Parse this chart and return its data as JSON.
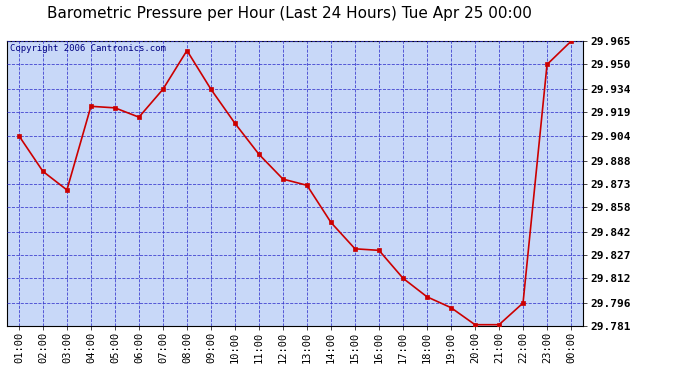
{
  "title": "Barometric Pressure per Hour (Last 24 Hours) Tue Apr 25 00:00",
  "copyright": "Copyright 2006 Cantronics.com",
  "x_labels": [
    "01:00",
    "02:00",
    "03:00",
    "04:00",
    "05:00",
    "06:00",
    "07:00",
    "08:00",
    "09:00",
    "10:00",
    "11:00",
    "12:00",
    "13:00",
    "14:00",
    "15:00",
    "16:00",
    "17:00",
    "18:00",
    "19:00",
    "20:00",
    "21:00",
    "22:00",
    "23:00",
    "00:00"
  ],
  "x_values": [
    1,
    2,
    3,
    4,
    5,
    6,
    7,
    8,
    9,
    10,
    11,
    12,
    13,
    14,
    15,
    16,
    17,
    18,
    19,
    20,
    21,
    22,
    23,
    24
  ],
  "y_values": [
    29.904,
    29.881,
    29.869,
    29.923,
    29.922,
    29.916,
    29.934,
    29.959,
    29.934,
    29.912,
    29.892,
    29.876,
    29.872,
    29.848,
    29.831,
    29.83,
    29.812,
    29.8,
    29.793,
    29.782,
    29.782,
    29.796,
    29.95,
    29.965
  ],
  "y_min": 29.781,
  "y_max": 29.965,
  "y_ticks": [
    29.781,
    29.796,
    29.812,
    29.827,
    29.842,
    29.858,
    29.873,
    29.888,
    29.904,
    29.919,
    29.934,
    29.95,
    29.965
  ],
  "line_color": "#cc0000",
  "marker_color": "#cc0000",
  "grid_color": "#3333cc",
  "title_color": "#000000",
  "title_fontsize": 11,
  "copyright_fontsize": 6.5,
  "tick_fontsize": 7.5,
  "ytick_fontsize": 8,
  "outer_bg_color": "#ffffff",
  "plot_bg_color": "#c8d8f8"
}
